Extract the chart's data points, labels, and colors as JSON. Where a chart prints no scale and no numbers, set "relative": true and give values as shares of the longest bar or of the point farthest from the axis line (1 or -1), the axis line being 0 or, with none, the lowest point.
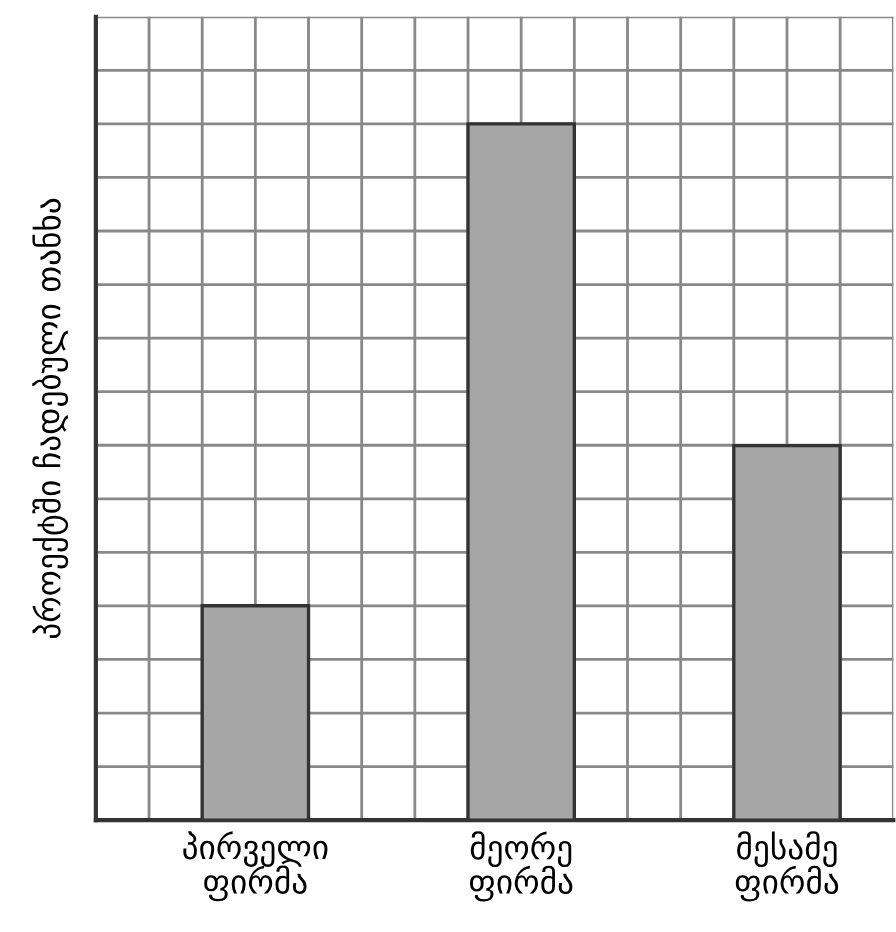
{
  "chart_data": {
    "type": "bar",
    "ylabel": "პროექტში ჩადებული თანხა",
    "categories": [
      "პირველი\nფირმა",
      "მეორე\nფირმა",
      "მესამე\nფირმა"
    ],
    "values": [
      0.308,
      1,
      0.538
    ],
    "color": "#a6a6a6",
    "relative": true,
    "grid": true
  }
}
